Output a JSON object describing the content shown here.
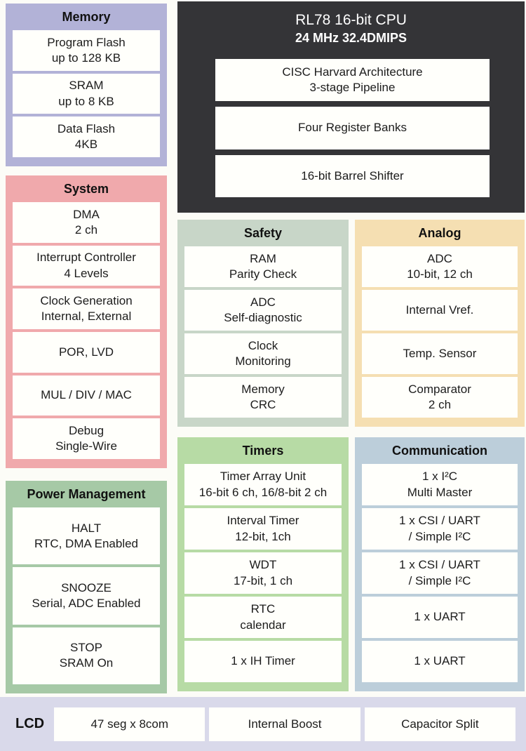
{
  "page": {
    "background": "#fcfcf7",
    "text_color": "#1c1c1c"
  },
  "cpu": {
    "title": "RL78 16-bit CPU",
    "subtitle": "24 MHz 32.4DMIPS",
    "color": "#343437",
    "features": [
      "CISC Harvard Architecture\n3-stage Pipeline",
      "Four Register Banks",
      "16-bit Barrel Shifter"
    ]
  },
  "memory": {
    "title": "Memory",
    "color": "#b2b2d7",
    "items": [
      "Program Flash\nup to 128 KB",
      "SRAM\nup to 8 KB",
      "Data Flash\n4KB"
    ]
  },
  "system": {
    "title": "System",
    "color": "#f0a9ac",
    "items": [
      "DMA\n2 ch",
      "Interrupt Controller\n4 Levels",
      "Clock Generation\nInternal, External",
      "POR, LVD",
      "MUL / DIV / MAC",
      "Debug\nSingle-Wire"
    ]
  },
  "safety": {
    "title": "Safety",
    "color": "#c8d6c8",
    "items": [
      "RAM\nParity Check",
      "ADC\nSelf-diagnostic",
      "Clock\nMonitoring",
      "Memory\nCRC"
    ]
  },
  "analog": {
    "title": "Analog",
    "color": "#f5dfb2",
    "items": [
      "ADC\n10-bit, 12 ch",
      "Internal Vref.",
      "Temp. Sensor",
      "Comparator\n2 ch"
    ]
  },
  "power": {
    "title": "Power Management",
    "color": "#a6c9a6",
    "items": [
      "HALT\nRTC, DMA Enabled",
      "SNOOZE\nSerial, ADC Enabled",
      "STOP\nSRAM On"
    ]
  },
  "timers": {
    "title": "Timers",
    "color": "#b7dba5",
    "items": [
      "Timer Array Unit\n16-bit 6 ch, 16/8-bit 2 ch",
      "Interval Timer\n12-bit, 1ch",
      "WDT\n17-bit, 1 ch",
      "RTC\ncalendar",
      "1 x IH Timer"
    ]
  },
  "communication": {
    "title": "Communication",
    "color": "#bcceda",
    "items": [
      "1 x I²C\nMulti Master",
      "1 x CSI / UART\n/ Simple I²C",
      "1 x CSI / UART\n/ Simple I²C",
      "1 x UART",
      "1 x UART"
    ]
  },
  "lcd": {
    "label": "LCD",
    "color": "#d9d9ea",
    "items": [
      "47 seg x 8com",
      "Internal Boost",
      "Capacitor Split"
    ]
  }
}
